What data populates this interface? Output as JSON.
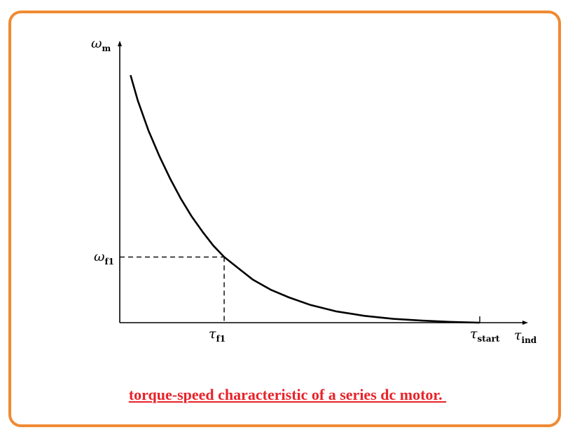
{
  "colors": {
    "frame": "#f08a33",
    "caption": "#e8232a",
    "curve": "#000000"
  },
  "chart_data": {
    "type": "line",
    "title": "torque-speed characteristic of a series dc motor. ",
    "y_label": {
      "symbol": "ω",
      "sub": "m"
    },
    "x_label": {
      "symbol": "τ",
      "sub": "ind"
    },
    "x_ticks": [
      {
        "symbol": "τ",
        "sub": "f1",
        "x": 0.29
      },
      {
        "symbol": "τ",
        "sub": "start",
        "x": 1.0
      }
    ],
    "y_ticks": [
      {
        "symbol": "ω",
        "sub": "f1",
        "y": 0.26
      }
    ],
    "xlim": [
      0,
      1.1
    ],
    "ylim": [
      0,
      1.05
    ],
    "grid": false,
    "series": [
      {
        "x": [
          0.03,
          0.05,
          0.08,
          0.11,
          0.14,
          0.17,
          0.2,
          0.23,
          0.26,
          0.29,
          0.33,
          0.37,
          0.42,
          0.47,
          0.53,
          0.6,
          0.68,
          0.76,
          0.84,
          0.92,
          1.0
        ],
        "y": [
          0.98,
          0.88,
          0.76,
          0.66,
          0.57,
          0.49,
          0.42,
          0.36,
          0.305,
          0.26,
          0.215,
          0.17,
          0.13,
          0.1,
          0.07,
          0.045,
          0.027,
          0.015,
          0.008,
          0.003,
          0.0
        ]
      }
    ]
  }
}
